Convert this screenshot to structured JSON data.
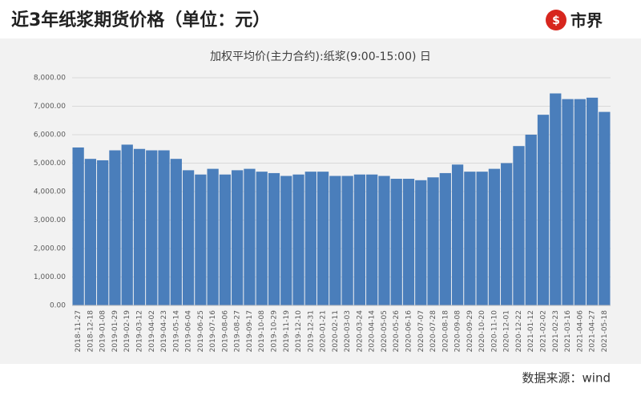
{
  "header": {
    "title": "近3年纸浆期货价格（单位：元）",
    "logo": "市界",
    "source": "数据来源：wind"
  },
  "chart_data": {
    "type": "bar",
    "title": "加权平均价(主力合约):纸浆(9:00-15:00) 日",
    "categories": [
      "2018-11-27",
      "2018-12-18",
      "2019-01-08",
      "2019-01-29",
      "2019-02-19",
      "2019-03-12",
      "2019-04-02",
      "2019-04-23",
      "2019-05-14",
      "2019-06-04",
      "2019-06-25",
      "2019-07-16",
      "2019-08-06",
      "2019-08-27",
      "2019-09-17",
      "2019-10-08",
      "2019-10-29",
      "2019-11-19",
      "2019-12-10",
      "2019-12-31",
      "2020-01-21",
      "2020-02-11",
      "2020-03-03",
      "2020-03-24",
      "2020-04-14",
      "2020-05-05",
      "2020-05-26",
      "2020-06-16",
      "2020-07-07",
      "2020-07-28",
      "2020-08-18",
      "2020-09-08",
      "2020-09-29",
      "2020-10-20",
      "2020-11-10",
      "2020-12-01",
      "2020-12-22",
      "2021-01-12",
      "2021-02-02",
      "2021-02-23",
      "2021-03-16",
      "2021-04-06",
      "2021-04-27",
      "2021-05-18"
    ],
    "values": [
      5550,
      5150,
      5100,
      5450,
      5650,
      5500,
      5450,
      5450,
      5150,
      4750,
      4600,
      4800,
      4600,
      4750,
      4800,
      4700,
      4650,
      4550,
      4600,
      4700,
      4700,
      4550,
      4550,
      4600,
      4600,
      4550,
      4450,
      4450,
      4400,
      4500,
      4650,
      4950,
      4700,
      4700,
      4800,
      5000,
      5600,
      6000,
      6700,
      7450,
      7250,
      7250,
      7300,
      6800
    ],
    "color": "#4a7ebb",
    "ylim": [
      0,
      8000
    ],
    "yticks": [
      {
        "value": 0,
        "label": "0.00"
      },
      {
        "value": 1000,
        "label": "1,000.00"
      },
      {
        "value": 2000,
        "label": "2,000.00"
      },
      {
        "value": 3000,
        "label": "3,000.00"
      },
      {
        "value": 4000,
        "label": "4,000.00"
      },
      {
        "value": 5000,
        "label": "5,000.00"
      },
      {
        "value": 6000,
        "label": "6,000.00"
      },
      {
        "value": 7000,
        "label": "7,000.00"
      },
      {
        "value": 8000,
        "label": "8,000.00"
      }
    ],
    "grid": true
  }
}
